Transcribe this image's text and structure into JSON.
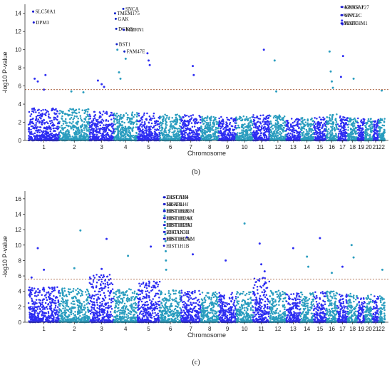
{
  "colors": {
    "odd": "#2d2df2",
    "even": "#2a9dbf",
    "threshold": "#a0522d",
    "label_point": "#1a1acc"
  },
  "chart_data": [
    {
      "type": "scatter",
      "panel_label": "(b)",
      "xlabel": "Chromosome",
      "ylabel": "-log10 P-value",
      "ylim": [
        0,
        15
      ],
      "yticks": [
        0,
        2,
        4,
        6,
        8,
        10,
        12,
        14
      ],
      "threshold": 5.6,
      "grid": false,
      "chromosomes": [
        "1",
        "2",
        "3",
        "4",
        "5",
        "6",
        "7",
        "8",
        "9",
        "10",
        "11",
        "12",
        "13",
        "14",
        "15",
        "16",
        "17",
        "18",
        "19",
        "20",
        "21",
        "22"
      ],
      "chrom_lengths": [
        249,
        243,
        198,
        190,
        181,
        171,
        159,
        146,
        141,
        136,
        135,
        133,
        115,
        107,
        102,
        90,
        83,
        80,
        59,
        64,
        47,
        51
      ],
      "background_max": [
        3.6,
        3.5,
        3.2,
        3.1,
        3.0,
        2.9,
        2.8,
        2.7,
        2.6,
        2.7,
        2.8,
        2.8,
        2.6,
        2.5,
        2.6,
        2.9,
        2.7,
        2.5,
        2.5,
        2.4,
        2.3,
        2.4
      ],
      "peaks": [
        {
          "chr": "1",
          "pos": 0.15,
          "p": 14.2
        },
        {
          "chr": "1",
          "pos": 0.17,
          "p": 13.0
        },
        {
          "chr": "1",
          "pos": 0.2,
          "p": 6.8
        },
        {
          "chr": "1",
          "pos": 0.3,
          "p": 6.5
        },
        {
          "chr": "1",
          "pos": 0.55,
          "p": 7.2
        },
        {
          "chr": "1",
          "pos": 0.5,
          "p": 5.6
        },
        {
          "chr": "2",
          "pos": 0.4,
          "p": 5.4
        },
        {
          "chr": "2",
          "pos": 0.8,
          "p": 5.3
        },
        {
          "chr": "3",
          "pos": 0.35,
          "p": 6.6
        },
        {
          "chr": "3",
          "pos": 0.5,
          "p": 6.2
        },
        {
          "chr": "3",
          "pos": 0.6,
          "p": 5.9
        },
        {
          "chr": "4",
          "pos": 0.05,
          "p": 14.0
        },
        {
          "chr": "4",
          "pos": 0.08,
          "p": 13.4
        },
        {
          "chr": "4",
          "pos": 0.1,
          "p": 12.3
        },
        {
          "chr": "4",
          "pos": 0.12,
          "p": 10.6
        },
        {
          "chr": "4",
          "pos": 0.15,
          "p": 10.0
        },
        {
          "chr": "4",
          "pos": 0.22,
          "p": 7.5
        },
        {
          "chr": "4",
          "pos": 0.28,
          "p": 6.8
        },
        {
          "chr": "4",
          "pos": 0.4,
          "p": 14.5
        },
        {
          "chr": "4",
          "pos": 0.45,
          "p": 9.8
        },
        {
          "chr": "4",
          "pos": 0.42,
          "p": 12.2
        },
        {
          "chr": "4",
          "pos": 0.5,
          "p": 9.0
        },
        {
          "chr": "5",
          "pos": 0.45,
          "p": 9.6
        },
        {
          "chr": "5",
          "pos": 0.5,
          "p": 8.8
        },
        {
          "chr": "5",
          "pos": 0.55,
          "p": 8.3
        },
        {
          "chr": "7",
          "pos": 0.6,
          "p": 8.2
        },
        {
          "chr": "7",
          "pos": 0.65,
          "p": 7.2
        },
        {
          "chr": "11",
          "pos": 0.65,
          "p": 10.0
        },
        {
          "chr": "12",
          "pos": 0.3,
          "p": 8.8
        },
        {
          "chr": "12",
          "pos": 0.4,
          "p": 5.4
        },
        {
          "chr": "16",
          "pos": 0.3,
          "p": 9.8
        },
        {
          "chr": "16",
          "pos": 0.4,
          "p": 7.6
        },
        {
          "chr": "16",
          "pos": 0.5,
          "p": 6.5
        },
        {
          "chr": "16",
          "pos": 0.6,
          "p": 5.8
        },
        {
          "chr": "17",
          "pos": 0.4,
          "p": 13.8
        },
        {
          "chr": "17",
          "pos": 0.45,
          "p": 13.2
        },
        {
          "chr": "17",
          "pos": 0.5,
          "p": 12.8
        },
        {
          "chr": "17",
          "pos": 0.55,
          "p": 9.3
        },
        {
          "chr": "17",
          "pos": 0.35,
          "p": 7.0
        },
        {
          "chr": "18",
          "pos": 0.6,
          "p": 6.8
        },
        {
          "chr": "22",
          "pos": 0.5,
          "p": 5.5
        }
      ],
      "annotations": [
        {
          "text": "SLC50A1",
          "chr": "1",
          "pos": 0.15,
          "p": 14.2
        },
        {
          "text": "DPM3",
          "chr": "1",
          "pos": 0.17,
          "p": 13.0
        },
        {
          "text": "SNCA",
          "chr": "4",
          "pos": 0.4,
          "p": 14.5
        },
        {
          "text": "TMEM175",
          "chr": "4",
          "pos": 0.05,
          "p": 14.0
        },
        {
          "text": "GAK",
          "chr": "4",
          "pos": 0.08,
          "p": 13.4
        },
        {
          "text": "DGKQ",
          "chr": "4",
          "pos": 0.1,
          "p": 12.3
        },
        {
          "text": "MMRN1",
          "chr": "4",
          "pos": 0.42,
          "p": 12.2
        },
        {
          "text": "BST1",
          "chr": "4",
          "pos": 0.12,
          "p": 10.6
        },
        {
          "text": "FAM47E",
          "chr": "4",
          "pos": 0.45,
          "p": 9.8
        },
        {
          "text": "ARHGAP27",
          "chr": "17",
          "pos": 0.4,
          "p": 14.7
        },
        {
          "text": "KANSL1",
          "chr": "17",
          "pos": 0.5,
          "p": 14.7
        },
        {
          "text": "WNT3",
          "chr": "17",
          "pos": 0.4,
          "p": 13.8
        },
        {
          "text": "SPPL2C",
          "chr": "17",
          "pos": 0.5,
          "p": 13.8
        },
        {
          "text": "MAPT",
          "chr": "17",
          "pos": 0.4,
          "p": 12.9
        },
        {
          "text": "PLEKHM1",
          "chr": "17",
          "pos": 0.5,
          "p": 12.9
        }
      ]
    },
    {
      "type": "scatter",
      "panel_label": "(c)",
      "xlabel": "Chromosome",
      "ylabel": "-log10 P-value",
      "ylim": [
        0,
        17
      ],
      "yticks": [
        0,
        2,
        4,
        6,
        8,
        10,
        12,
        14,
        16
      ],
      "threshold": 5.6,
      "grid": false,
      "chromosomes": [
        "1",
        "2",
        "3",
        "4",
        "5",
        "6",
        "7",
        "8",
        "9",
        "10",
        "11",
        "12",
        "13",
        "14",
        "15",
        "16",
        "17",
        "18",
        "19",
        "20",
        "21",
        "22"
      ],
      "chrom_lengths": [
        249,
        243,
        198,
        190,
        181,
        171,
        159,
        146,
        141,
        136,
        135,
        133,
        115,
        107,
        102,
        90,
        83,
        80,
        59,
        64,
        47,
        51
      ],
      "background_max": [
        4.6,
        4.4,
        6.2,
        4.3,
        5.3,
        4.2,
        4.1,
        3.9,
        3.9,
        4.0,
        5.8,
        4.1,
        3.8,
        3.9,
        4.0,
        4.0,
        3.8,
        3.7,
        3.6,
        3.6,
        3.4,
        3.4
      ],
      "peaks": [
        {
          "chr": "1",
          "pos": 0.3,
          "p": 9.6
        },
        {
          "chr": "1",
          "pos": 0.1,
          "p": 5.8
        },
        {
          "chr": "1",
          "pos": 0.5,
          "p": 6.8
        },
        {
          "chr": "2",
          "pos": 0.7,
          "p": 11.9
        },
        {
          "chr": "2",
          "pos": 0.5,
          "p": 7.0
        },
        {
          "chr": "3",
          "pos": 0.5,
          "p": 6.9
        },
        {
          "chr": "3",
          "pos": 0.7,
          "p": 10.8
        },
        {
          "chr": "4",
          "pos": 0.6,
          "p": 8.6
        },
        {
          "chr": "5",
          "pos": 0.6,
          "p": 9.8
        },
        {
          "chr": "6",
          "pos": 0.2,
          "p": 16.2
        },
        {
          "chr": "6",
          "pos": 0.21,
          "p": 15.3
        },
        {
          "chr": "6",
          "pos": 0.22,
          "p": 14.6
        },
        {
          "chr": "6",
          "pos": 0.23,
          "p": 13.8
        },
        {
          "chr": "6",
          "pos": 0.24,
          "p": 13.0
        },
        {
          "chr": "6",
          "pos": 0.25,
          "p": 12.2
        },
        {
          "chr": "6",
          "pos": 0.26,
          "p": 11.4
        },
        {
          "chr": "6",
          "pos": 0.27,
          "p": 10.5
        },
        {
          "chr": "6",
          "pos": 0.28,
          "p": 9.2
        },
        {
          "chr": "6",
          "pos": 0.29,
          "p": 8.0
        },
        {
          "chr": "6",
          "pos": 0.3,
          "p": 6.8
        },
        {
          "chr": "7",
          "pos": 0.3,
          "p": 11.0
        },
        {
          "chr": "7",
          "pos": 0.6,
          "p": 8.8
        },
        {
          "chr": "9",
          "pos": 0.4,
          "p": 8.0
        },
        {
          "chr": "10",
          "pos": 0.5,
          "p": 12.8
        },
        {
          "chr": "11",
          "pos": 0.4,
          "p": 10.2
        },
        {
          "chr": "11",
          "pos": 0.5,
          "p": 7.5
        },
        {
          "chr": "11",
          "pos": 0.7,
          "p": 6.6
        },
        {
          "chr": "13",
          "pos": 0.5,
          "p": 9.6
        },
        {
          "chr": "14",
          "pos": 0.5,
          "p": 8.5
        },
        {
          "chr": "14",
          "pos": 0.6,
          "p": 7.2
        },
        {
          "chr": "15",
          "pos": 0.5,
          "p": 10.9
        },
        {
          "chr": "16",
          "pos": 0.5,
          "p": 6.4
        },
        {
          "chr": "17",
          "pos": 0.5,
          "p": 7.2
        },
        {
          "chr": "18",
          "pos": 0.4,
          "p": 10.0
        },
        {
          "chr": "18",
          "pos": 0.6,
          "p": 8.4
        },
        {
          "chr": "22",
          "pos": 0.6,
          "p": 6.8
        }
      ],
      "annotations": [
        {
          "text": "ZKSCAN4",
          "chr": "6",
          "pos": 0.2,
          "p": 16.2
        },
        {
          "text": "HIST1H3I",
          "chr": "6",
          "pos": 0.24,
          "p": 16.2
        },
        {
          "text": "NKAPL",
          "chr": "6",
          "pos": 0.2,
          "p": 15.3
        },
        {
          "text": "HIST1H4J",
          "chr": "6",
          "pos": 0.24,
          "p": 15.3
        },
        {
          "text": "HIST1H4K",
          "chr": "6",
          "pos": 0.2,
          "p": 14.4
        },
        {
          "text": "HIST1H2BM",
          "chr": "6",
          "pos": 0.24,
          "p": 14.4
        },
        {
          "text": "HIST1H2AK",
          "chr": "6",
          "pos": 0.2,
          "p": 13.5
        },
        {
          "text": "HIST1H2AJ",
          "chr": "6",
          "pos": 0.24,
          "p": 13.5
        },
        {
          "text": "HIST1H2BL",
          "chr": "6",
          "pos": 0.2,
          "p": 12.6
        },
        {
          "text": "HIST1H2AJ",
          "chr": "6",
          "pos": 0.24,
          "p": 12.6
        },
        {
          "text": "HIST1H3H",
          "chr": "6",
          "pos": 0.2,
          "p": 11.7
        },
        {
          "text": "ZSCAN31",
          "chr": "6",
          "pos": 0.24,
          "p": 11.7
        },
        {
          "text": "HIST1H2AL",
          "chr": "6",
          "pos": 0.2,
          "p": 10.8
        },
        {
          "text": "HIST1H2AM",
          "chr": "6",
          "pos": 0.24,
          "p": 10.8
        },
        {
          "text": "HIST1H1B",
          "chr": "6",
          "pos": 0.2,
          "p": 9.9
        }
      ]
    }
  ]
}
